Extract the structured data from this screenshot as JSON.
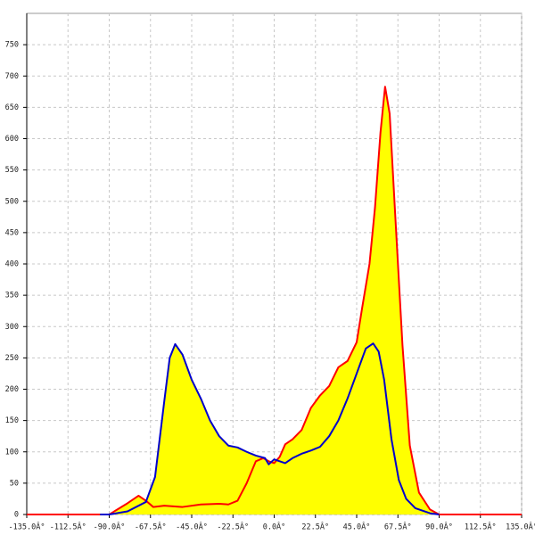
{
  "chart_data": {
    "type": "area",
    "fill": "#ffff00",
    "grid": true,
    "xlim": [
      -135,
      135
    ],
    "ylim": [
      0,
      800
    ],
    "xticks": [
      {
        "value": -135,
        "label": "-135.0Â°"
      },
      {
        "value": -112.5,
        "label": "-112.5Â°"
      },
      {
        "value": -90,
        "label": "-90.0Â°"
      },
      {
        "value": -67.5,
        "label": "-67.5Â°"
      },
      {
        "value": -45,
        "label": "-45.0Â°"
      },
      {
        "value": -22.5,
        "label": "-22.5Â°"
      },
      {
        "value": 0,
        "label": "0.0Â°"
      },
      {
        "value": 22.5,
        "label": "22.5Â°"
      },
      {
        "value": 45,
        "label": "45.0Â°"
      },
      {
        "value": 67.5,
        "label": "67.5Â°"
      },
      {
        "value": 90,
        "label": "90.0Â°"
      },
      {
        "value": 112.5,
        "label": "112.5Â°"
      },
      {
        "value": 135,
        "label": "135.0Â°"
      }
    ],
    "yticks": [
      0,
      50,
      100,
      150,
      200,
      250,
      300,
      350,
      400,
      450,
      500,
      550,
      600,
      650,
      700,
      750
    ],
    "series": [
      {
        "color": "#ff0000",
        "x": [
          -135,
          -90,
          -80,
          -74,
          -70,
          -66,
          -60,
          -50,
          -40,
          -30,
          -25,
          -20,
          -15,
          -10,
          -6,
          -3,
          0,
          3,
          6,
          10,
          15,
          20,
          25,
          30,
          35,
          40,
          45,
          48,
          52,
          55,
          58,
          60.5,
          63,
          66,
          70,
          74,
          79,
          85,
          90,
          135
        ],
        "values": [
          0,
          0,
          18,
          30,
          22,
          12,
          14,
          12,
          16,
          17,
          16,
          22,
          50,
          85,
          90,
          85,
          82,
          92,
          112,
          120,
          135,
          170,
          190,
          205,
          235,
          245,
          275,
          330,
          400,
          490,
          610,
          683,
          640,
          480,
          270,
          110,
          35,
          8,
          0,
          0
        ]
      },
      {
        "color": "#0000cc",
        "x": [
          -95,
          -90,
          -80,
          -70,
          -65,
          -60,
          -57,
          -54,
          -50,
          -45,
          -40,
          -35,
          -30,
          -25,
          -20,
          -15,
          -10,
          -5,
          -3,
          0,
          3,
          6,
          10,
          15,
          20,
          25,
          30,
          35,
          40,
          45,
          50,
          54,
          57,
          60,
          64,
          68,
          72,
          77,
          85,
          90
        ],
        "values": [
          0,
          0,
          5,
          20,
          60,
          180,
          250,
          272,
          255,
          215,
          185,
          150,
          125,
          110,
          107,
          100,
          94,
          90,
          80,
          88,
          85,
          82,
          90,
          97,
          102,
          108,
          125,
          150,
          185,
          225,
          265,
          273,
          260,
          215,
          120,
          55,
          25,
          10,
          2,
          0
        ]
      }
    ]
  }
}
